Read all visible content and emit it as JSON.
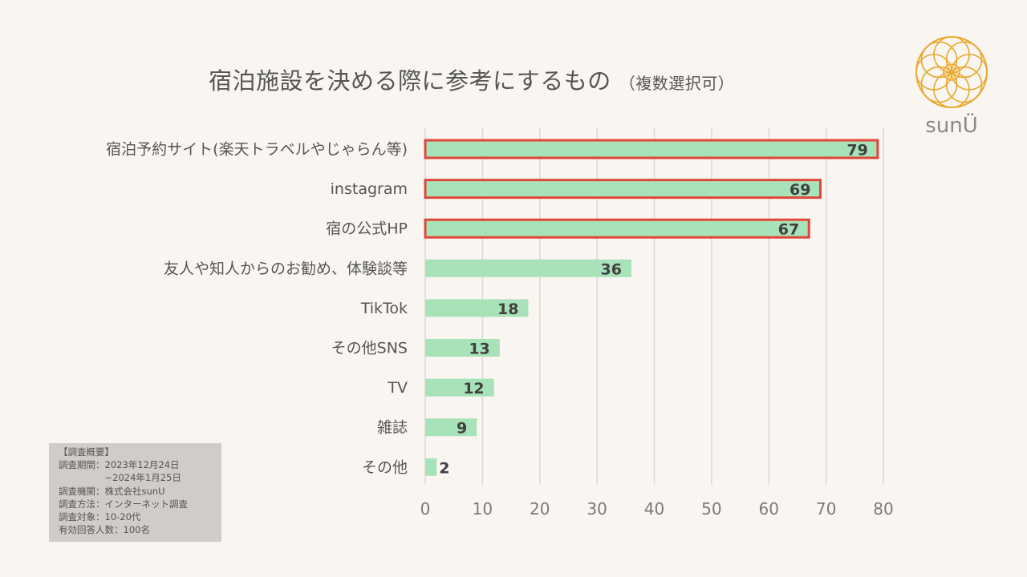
{
  "title": {
    "main": "宿泊施設を決める際に参考にするもの",
    "sub": "（複数選択可）"
  },
  "logo": {
    "text": "sunÜ",
    "color": "#e9a92f"
  },
  "survey": {
    "lines": [
      "【調査概要】",
      "調査期間：2023年12月24日",
      "　　　　　~2024年1月25日",
      "調査機関：株式会社sunU",
      "調査方法：インターネット調査",
      "調査対象：10-20代",
      "有効回答人数：100名"
    ]
  },
  "chart_data": {
    "type": "bar",
    "orientation": "horizontal",
    "categories": [
      "宿泊予約サイト(楽天トラベルやじゃらん等)",
      "instagram",
      "宿の公式HP",
      "友人や知人からのお勧め、体験談等",
      "TikTok",
      "その他SNS",
      "TV",
      "雑誌",
      "その他"
    ],
    "values": [
      79,
      69,
      67,
      36,
      18,
      13,
      12,
      9,
      2
    ],
    "highlighted": [
      true,
      true,
      true,
      false,
      false,
      false,
      false,
      false,
      false
    ],
    "xlim": [
      0,
      80
    ],
    "xticks": [
      0,
      10,
      20,
      30,
      40,
      50,
      60,
      70,
      80
    ],
    "grid": true,
    "bar_color": "#a8e2b8",
    "highlight_border_color": "#e0473a",
    "title": "宿泊施設を決める際に参考にするもの",
    "xlabel": "",
    "ylabel": ""
  }
}
